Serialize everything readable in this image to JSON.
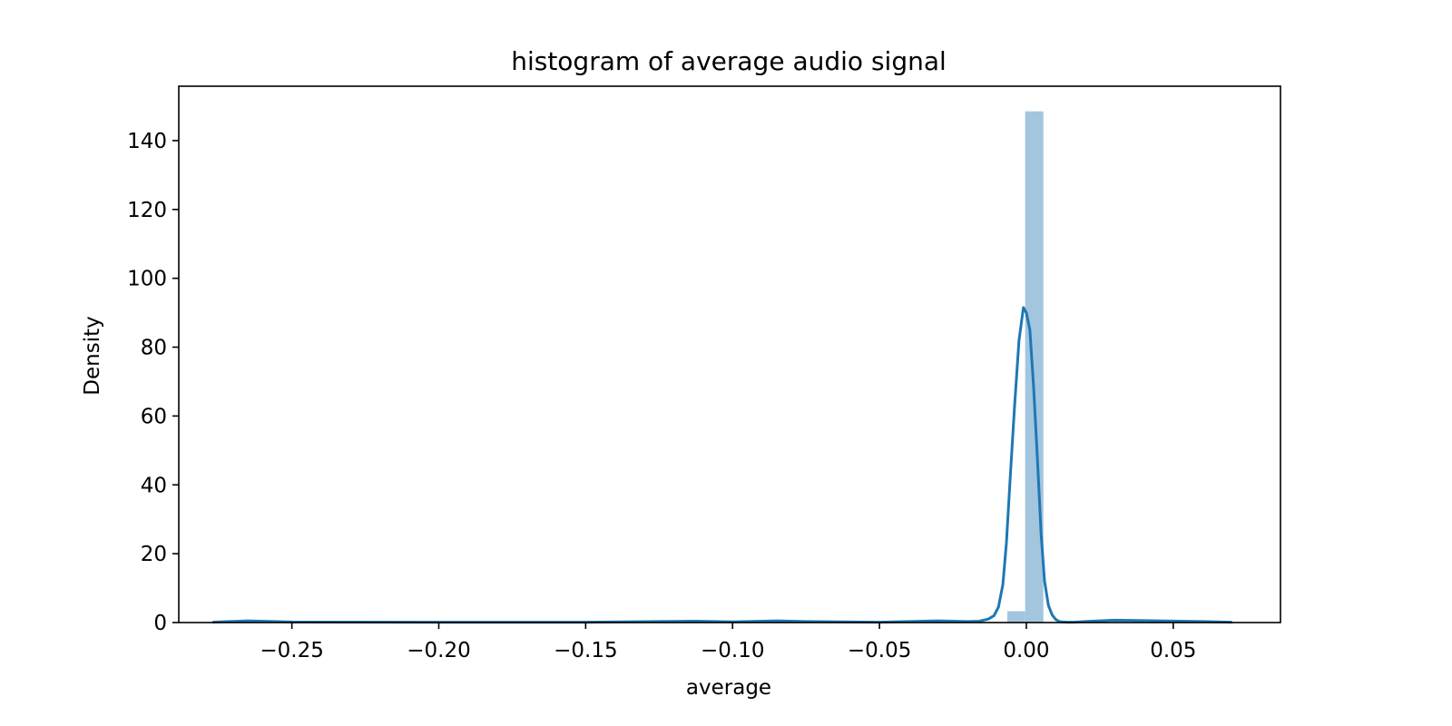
{
  "chart_data": {
    "type": "bar",
    "title": "histogram of average audio signal",
    "xlabel": "average",
    "ylabel": "Density",
    "xlim": [
      -0.2885,
      0.0865
    ],
    "ylim": [
      0,
      155.8
    ],
    "xticks": [
      -0.25,
      -0.2,
      -0.15,
      -0.1,
      -0.05,
      0.0,
      0.05
    ],
    "xtick_labels": [
      "−0.25",
      "−0.20",
      "−0.15",
      "−0.10",
      "−0.05",
      "0.00",
      "0.05"
    ],
    "yticks": [
      0,
      20,
      40,
      60,
      80,
      100,
      120,
      140
    ],
    "ytick_labels": [
      "0",
      "20",
      "40",
      "60",
      "80",
      "100",
      "120",
      "140"
    ],
    "grid": false,
    "legend": "none",
    "colors": {
      "bars": "#a3c5de",
      "kde": "#1f77b4"
    },
    "histogram": {
      "bins": [
        {
          "x0": -0.0065,
          "x1": -0.0004,
          "density": 3.3
        },
        {
          "x0": -0.0004,
          "x1": 0.0058,
          "density": 148.5
        }
      ]
    },
    "series": [
      {
        "type": "line",
        "x": [
          -0.277,
          -0.265,
          -0.25,
          -0.2,
          -0.15,
          -0.112,
          -0.1,
          -0.085,
          -0.075,
          -0.05,
          -0.03,
          -0.02,
          -0.016,
          -0.013,
          -0.011,
          -0.0095,
          -0.008,
          -0.0068,
          -0.0055,
          -0.004,
          -0.0025,
          -0.001,
          0.0,
          0.0012,
          0.0025,
          0.0038,
          0.005,
          0.0062,
          0.0075,
          0.0088,
          0.01,
          0.0112,
          0.0125,
          0.014,
          0.016,
          0.02,
          0.03,
          0.045,
          0.06,
          0.07
        ],
        "y": [
          0.1,
          0.5,
          0.15,
          0.1,
          0.1,
          0.4,
          0.2,
          0.5,
          0.3,
          0.1,
          0.5,
          0.3,
          0.4,
          1.0,
          2.0,
          4.5,
          11.0,
          23.0,
          42.0,
          63.0,
          82.0,
          91.5,
          90.0,
          85.0,
          68.0,
          47.0,
          26.0,
          12.0,
          5.0,
          2.2,
          0.9,
          0.3,
          0.15,
          0.1,
          0.1,
          0.3,
          0.7,
          0.5,
          0.3,
          0.1
        ]
      }
    ]
  }
}
